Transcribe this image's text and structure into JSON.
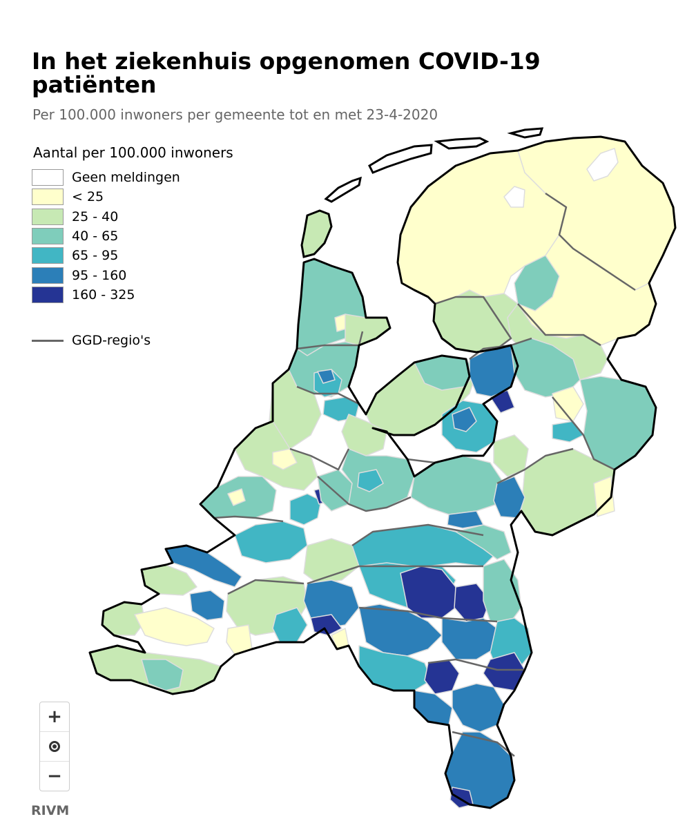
{
  "title": "In het ziekenhuis opgenomen COVID-19 patiënten",
  "subtitle": "Per 100.000 inwoners per gemeente tot en met 23-4-2020",
  "legend": {
    "title": "Aantal per 100.000 inwoners",
    "items": [
      {
        "label": "Geen meldingen",
        "color": "#ffffff"
      },
      {
        "label": "< 25",
        "color": "#ffffcc"
      },
      {
        "label": "25 - 40",
        "color": "#c7e9b4"
      },
      {
        "label": "40 - 65",
        "color": "#7fcdbb"
      },
      {
        "label": "65 - 95",
        "color": "#41b6c4"
      },
      {
        "label": "95 - 160",
        "color": "#2c7fb8"
      },
      {
        "label": "160 - 325",
        "color": "#253494"
      }
    ],
    "line_label": "GGD-regio's",
    "line_color": "#666666"
  },
  "zoom": {
    "in": "+",
    "out": "−"
  },
  "credit": "RIVM"
}
